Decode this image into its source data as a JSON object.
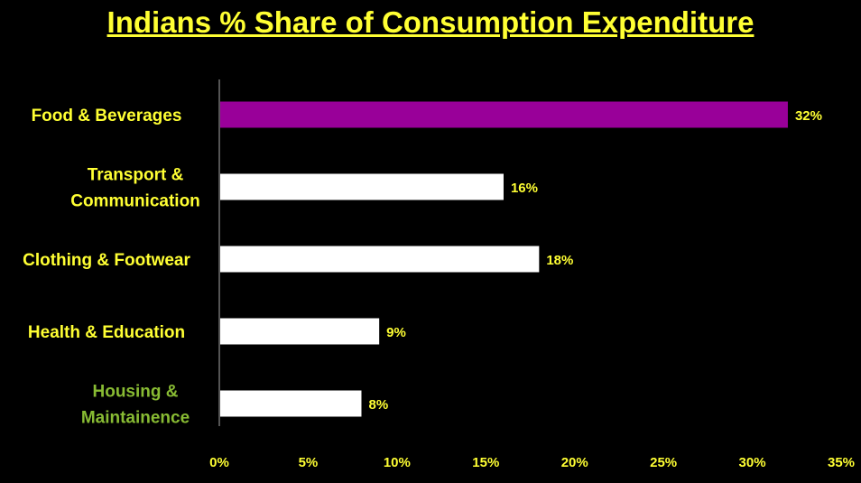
{
  "chart_data": {
    "type": "bar",
    "orientation": "horizontal",
    "title": "Indians % Share of Consumption Expenditure",
    "categories": [
      [
        "Food & Beverages"
      ],
      [
        "Transport &",
        "Communication"
      ],
      [
        "Clothing & Footwear"
      ],
      [
        "Health & Education"
      ],
      [
        "Housing &",
        "Maintainence"
      ]
    ],
    "values": [
      32,
      16,
      18,
      9,
      8
    ],
    "value_labels": [
      "32%",
      "16%",
      "18%",
      "9%",
      "8%"
    ],
    "bar_colors": [
      "#990099",
      "#ffffff",
      "#ffffff",
      "#ffffff",
      "#ffffff"
    ],
    "category_label_colors": [
      "#ffff33",
      "#ffff33",
      "#ffff33",
      "#ffff33",
      "#88bb33"
    ],
    "x_ticks": [
      "0%",
      "5%",
      "10%",
      "15%",
      "20%",
      "25%",
      "30%",
      "35%"
    ],
    "xlim": [
      0,
      35
    ],
    "grid": false,
    "legend": "none"
  },
  "colors": {
    "background": "#000000",
    "title": "#ffff33",
    "text": "#ffff33",
    "axis": "#aaaaaa"
  }
}
